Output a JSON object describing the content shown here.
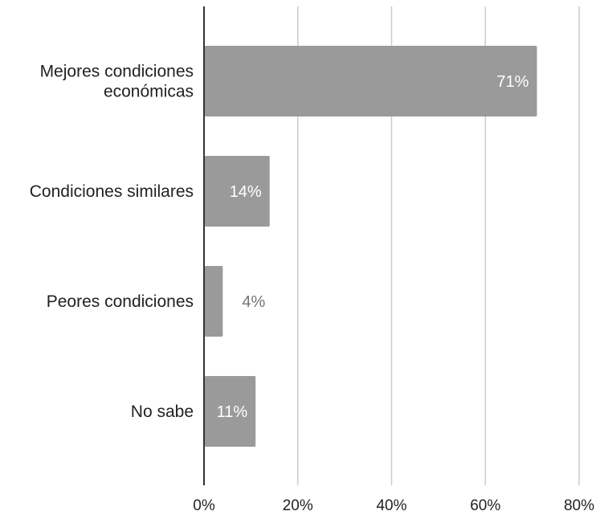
{
  "chart_data": {
    "type": "bar",
    "orientation": "horizontal",
    "categories": [
      [
        "Mejores condiciones",
        "económicas"
      ],
      [
        "Condiciones similares"
      ],
      [
        "Peores condiciones"
      ],
      [
        "No sabe"
      ]
    ],
    "values": [
      71,
      14,
      4,
      11
    ],
    "value_labels": [
      "71%",
      "14%",
      "4%",
      "11%"
    ],
    "xticks": [
      "0%",
      "20%",
      "40%",
      "60%",
      "80%"
    ],
    "xlim": [
      0,
      80
    ],
    "title": "",
    "xlabel": "",
    "ylabel": "",
    "grid": "vertical",
    "legend": "none"
  },
  "colors": {
    "bar": "#9a9a9a",
    "grid": "#cccccc",
    "axis": "#333333",
    "label_inside": "#ffffff",
    "label_outside": "#757575",
    "text": "#222222"
  }
}
